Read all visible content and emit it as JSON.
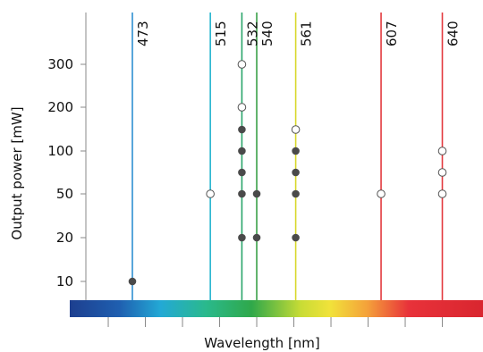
{
  "chart_data": {
    "type": "scatter",
    "xlabel": "Wavelength [nm]",
    "ylabel": "Output power  [mW]",
    "y_scale": "categorical-ordinal",
    "y_ticks": [
      "10",
      "20",
      "50",
      "100",
      "200",
      "300"
    ],
    "x_range_nm": [
      440,
      660
    ],
    "grid": false,
    "legend": "none",
    "spectrum_bar": true,
    "line_colors": {
      "473": "#2f8fd0",
      "515": "#25b5cf",
      "532": "#2aa56a",
      "540": "#3aa047",
      "561": "#d8d82b",
      "607": "#e33a3f",
      "640": "#e33a3f"
    },
    "lasers": [
      {
        "wavelength": "473",
        "filled": [
          "10"
        ],
        "open": []
      },
      {
        "wavelength": "515",
        "filled": [],
        "open": [
          "50"
        ]
      },
      {
        "wavelength": "532",
        "filled": [
          "20",
          "50",
          "75",
          "100",
          "150"
        ],
        "open": [
          "200",
          "300"
        ]
      },
      {
        "wavelength": "540",
        "filled": [
          "20",
          "50"
        ],
        "open": []
      },
      {
        "wavelength": "561",
        "filled": [
          "20",
          "50",
          "75",
          "100"
        ],
        "open": [
          "150"
        ]
      },
      {
        "wavelength": "607",
        "filled": [],
        "open": [
          "50"
        ]
      },
      {
        "wavelength": "640",
        "filled": [],
        "open": [
          "50",
          "75",
          "100"
        ]
      }
    ],
    "colors": {
      "filled_marker": "#4a4a4a",
      "open_marker_fill": "#ffffff",
      "open_marker_stroke": "#555555",
      "axis": "#888888"
    }
  }
}
